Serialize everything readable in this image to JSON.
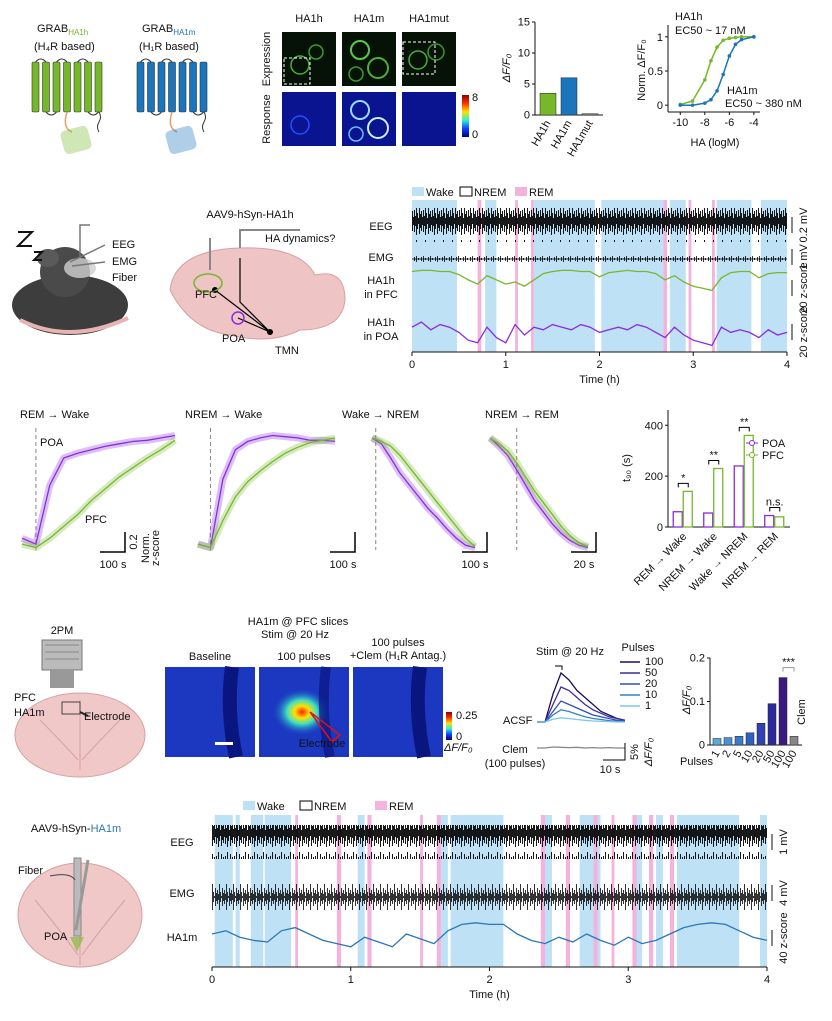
{
  "sensors": [
    {
      "name": "GRAB",
      "tag": "HA1h",
      "basis": "(H₄R based)",
      "color": "#76b82a"
    },
    {
      "name": "GRAB",
      "tag": "HA1m",
      "basis": "(H₁R based)",
      "color": "#1a75bc"
    }
  ],
  "imaging": {
    "columns": [
      {
        "label": "HA1h",
        "color": "#76b82a"
      },
      {
        "label": "HA1m",
        "color": "#1a75bc"
      },
      {
        "label": "HA1mut",
        "color": "#888888"
      }
    ],
    "rows": [
      "Expression",
      "Response"
    ],
    "colorbar": [
      8,
      0
    ]
  },
  "sleep_setup": {
    "vector": "AAV9-hSyn-HA1h",
    "labels": [
      "EEG",
      "EMG",
      "Fiber"
    ],
    "question": "HA dynamics?",
    "regions": [
      "PFC",
      "POA",
      "TMN"
    ]
  },
  "slice_setup": {
    "microscope": "2PM",
    "region": "PFC",
    "sensor": "HA1m",
    "electrode": "Electrode",
    "title": "HA1m @ PFC  slices",
    "stim": "Stim @ 20 Hz",
    "images": [
      [
        "Baseline"
      ],
      [
        "100 pulses"
      ],
      [
        "100 pulses",
        "+Clem (H₁R Antag.)"
      ]
    ],
    "image_electrode": "Electrode",
    "colorbar": [
      0.25,
      0
    ],
    "colorbar_label": "ΔF/F₀"
  },
  "poa_setup": {
    "vector": "AAV9-hSyn-",
    "sensor": "HA1m",
    "fiber": "Fiber",
    "region": "POA"
  },
  "chart_data": [
    {
      "type": "bar",
      "ylabel": "ΔF/F₀",
      "categories": [
        "HA1h",
        "HA1m",
        "HA1mut"
      ],
      "values": [
        3.5,
        6,
        0.2
      ],
      "colors": [
        "#76b82a",
        "#1a75bc",
        "#888888"
      ],
      "ylim": [
        0,
        15
      ],
      "yticks": [
        0,
        5,
        10,
        15
      ]
    },
    {
      "type": "line",
      "xlabel": "HA (logM)",
      "ylabel": "Norm. ΔF/F₀",
      "x": [
        -10,
        -9,
        -8,
        -7.5,
        -7,
        -6.5,
        -6,
        -5.5,
        -5,
        -4
      ],
      "series": [
        {
          "name": "HA1h",
          "color": "#76b82a",
          "annotation": "EC50 ~ 17 nM",
          "values": [
            0.01,
            0.06,
            0.37,
            0.65,
            0.85,
            0.95,
            0.98,
            0.99,
            1,
            1
          ]
        },
        {
          "name": "HA1m",
          "color": "#1a75bc",
          "annotation": "EC50 ~ 380 nM",
          "values": [
            0,
            0,
            0.03,
            0.08,
            0.21,
            0.45,
            0.72,
            0.89,
            0.96,
            1
          ]
        }
      ],
      "xlim": [
        -11,
        -3.5
      ],
      "ylim": [
        -0.1,
        1.1
      ],
      "xticks": [
        -10,
        -8,
        -6,
        -4
      ],
      "yticks": [
        0,
        0.5,
        1
      ]
    },
    {
      "type": "sleep",
      "legend": [
        "Wake",
        "NREM",
        "REM"
      ],
      "colors": {
        "wake": "#bfe1f6",
        "rem": "#f4b3dc"
      },
      "wake": [
        [
          0,
          0.48
        ],
        [
          0.78,
          0.9
        ],
        [
          1.3,
          1.95
        ],
        [
          2.02,
          2.68
        ],
        [
          2.75,
          2.92
        ],
        [
          3.25,
          3.62
        ],
        [
          3.72,
          4
        ]
      ],
      "rem": [
        [
          0.7,
          0.74
        ],
        [
          1.1,
          1.13
        ],
        [
          1.27,
          1.3
        ],
        [
          2.68,
          2.72
        ],
        [
          2.95,
          2.98
        ],
        [
          3.2,
          3.23
        ]
      ],
      "x": [
        0,
        0.1,
        0.2,
        0.3,
        0.4,
        0.5,
        0.6,
        0.7,
        0.8,
        0.9,
        1,
        1.1,
        1.2,
        1.3,
        1.4,
        1.5,
        1.6,
        1.7,
        1.8,
        1.9,
        2,
        2.1,
        2.2,
        2.3,
        2.4,
        2.5,
        2.6,
        2.7,
        2.8,
        2.9,
        3,
        3.1,
        3.2,
        3.3,
        3.4,
        3.5,
        3.6,
        3.7,
        3.8,
        3.9,
        4
      ],
      "rows": [
        {
          "label": [
            "EEG"
          ],
          "scale": "0.2 mV"
        },
        {
          "label": [
            "EMG"
          ],
          "scale": "1 mV"
        },
        {
          "label": [
            "HA1h",
            "in PFC"
          ],
          "scale": "20 z-score",
          "color": "#76b82a",
          "values": [
            30,
            31,
            31,
            30,
            30,
            27,
            22,
            18,
            26,
            22,
            18,
            20,
            16,
            22,
            28,
            30,
            31,
            31,
            30,
            30,
            25,
            29,
            30,
            31,
            30,
            30,
            28,
            22,
            26,
            20,
            16,
            14,
            12,
            24,
            29,
            30,
            30,
            24,
            28,
            29,
            29
          ]
        },
        {
          "label": [
            "HA1h",
            "in POA"
          ],
          "scale": "20 z-score",
          "color": "#8a2be2",
          "values": [
            8,
            10,
            7,
            9,
            8,
            6,
            3,
            2,
            8,
            4,
            2,
            9,
            5,
            8,
            7,
            9,
            8,
            7,
            9,
            8,
            6,
            7,
            8,
            7,
            9,
            8,
            6,
            4,
            8,
            5,
            3,
            2,
            1,
            8,
            6,
            7,
            6,
            4,
            7,
            5,
            6
          ]
        }
      ],
      "xlim": [
        0,
        4
      ],
      "xticks": [
        0,
        1,
        2,
        3,
        4
      ],
      "xlabel": "Time (h)"
    },
    {
      "type": "transition",
      "title": "REM → Wake",
      "scale_x": "100 s",
      "scale_y": 0.2,
      "scale_y_label": [
        "Norm.",
        "z-score"
      ],
      "series": [
        {
          "name": "POA",
          "color": "#8a2be2",
          "values": [
            0.1,
            0.05,
            0.55,
            0.78,
            0.82,
            0.85,
            0.88,
            0.9,
            0.92,
            0.93,
            0.95,
            0.97
          ]
        },
        {
          "name": "PFC",
          "color": "#76b82a",
          "values": [
            0.05,
            0.02,
            0.1,
            0.2,
            0.3,
            0.42,
            0.52,
            0.62,
            0.7,
            0.78,
            0.85,
            0.93
          ]
        }
      ]
    },
    {
      "type": "transition",
      "title": "NREM → Wake",
      "scale_x": "100 s",
      "series": [
        {
          "color": "#8a2be2",
          "values": [
            0.05,
            0.02,
            0.6,
            0.85,
            0.92,
            0.95,
            0.97,
            0.96,
            0.95,
            0.93,
            0.93,
            0.92
          ]
        },
        {
          "color": "#76b82a",
          "values": [
            0.05,
            0.02,
            0.25,
            0.45,
            0.58,
            0.67,
            0.75,
            0.82,
            0.87,
            0.91,
            0.93,
            0.95
          ]
        }
      ]
    },
    {
      "type": "transition",
      "title": "Wake → NREM",
      "scale_x": "100 s",
      "series": [
        {
          "color": "#8a2be2",
          "values": [
            0.95,
            0.9,
            0.78,
            0.65,
            0.55,
            0.45,
            0.35,
            0.27,
            0.18,
            0.1,
            0.04,
            0.02
          ]
        },
        {
          "color": "#76b82a",
          "values": [
            0.95,
            0.92,
            0.88,
            0.8,
            0.7,
            0.6,
            0.5,
            0.4,
            0.3,
            0.2,
            0.1,
            0.03
          ]
        }
      ]
    },
    {
      "type": "transition",
      "title": "NREM → REM",
      "scale_x": "20 s",
      "series": [
        {
          "color": "#8a2be2",
          "values": [
            0.95,
            0.88,
            0.8,
            0.68,
            0.55,
            0.42,
            0.32,
            0.22,
            0.14,
            0.08,
            0.04,
            0.02
          ]
        },
        {
          "color": "#76b82a",
          "values": [
            0.95,
            0.9,
            0.84,
            0.74,
            0.62,
            0.5,
            0.4,
            0.3,
            0.2,
            0.12,
            0.06,
            0.03
          ]
        }
      ]
    },
    {
      "type": "grouped_bar",
      "ylabel": "t₉₀ (s)",
      "categories": [
        "REM → Wake",
        "NREM → Wake",
        "Wake → NREM",
        "NREM → REM"
      ],
      "series": [
        {
          "name": "POA",
          "color": "#8a2be2",
          "values": [
            60,
            55,
            240,
            45
          ]
        },
        {
          "name": "PFC",
          "color": "#76b82a",
          "values": [
            140,
            230,
            360,
            40
          ]
        }
      ],
      "significance": [
        "*",
        "**",
        "**",
        "n.s."
      ],
      "ylim": [
        0,
        460
      ],
      "yticks": [
        0,
        200,
        400
      ]
    },
    {
      "type": "trace_family",
      "title": "Stim @ 20 Hz",
      "legend_title": "Pulses",
      "series": [
        {
          "name": "100",
          "color": "#1b0f5e",
          "values": [
            0,
            0,
            8,
            14,
            12,
            9,
            7,
            5,
            3,
            2,
            1,
            0.5
          ]
        },
        {
          "name": "50",
          "color": "#3d2d9c",
          "values": [
            0,
            0,
            5,
            10,
            9,
            7,
            5,
            3.5,
            2.5,
            1.5,
            1,
            0.5
          ]
        },
        {
          "name": "20",
          "color": "#2f4fb8",
          "values": [
            0,
            0,
            3,
            6,
            5,
            4,
            3,
            2,
            1.5,
            1,
            0.5,
            0.3
          ]
        },
        {
          "name": "10",
          "color": "#2f82c8",
          "values": [
            0,
            0,
            2,
            3.5,
            3,
            2.2,
            1.5,
            1,
            0.7,
            0.4,
            0.2,
            0.1
          ]
        },
        {
          "name": "1",
          "color": "#7ec8e8",
          "values": [
            0,
            0,
            0.8,
            1.2,
            1,
            0.7,
            0.5,
            0.3,
            0.2,
            0.1,
            0,
            0
          ]
        }
      ],
      "acsf": "ACSF",
      "clem": {
        "label": [
          "Clem",
          "(100 pulses)"
        ],
        "color": "#888888",
        "values": [
          0,
          0,
          0.3,
          0.2,
          0.1,
          0.2,
          0,
          0.1,
          0,
          0.1,
          0,
          0
        ]
      },
      "scale_x": "10 s",
      "scale_y": "5%",
      "ylabel": "ΔF/F₀"
    },
    {
      "type": "bar",
      "ylabel": "ΔF/F₀",
      "xlabel": "Pulses",
      "categories": [
        "1",
        "2",
        "5",
        "10",
        "20",
        "50",
        "100",
        "100"
      ],
      "values": [
        0.015,
        0.017,
        0.02,
        0.028,
        0.05,
        0.095,
        0.155,
        0.02
      ],
      "colors": [
        "#5aa9dd",
        "#4a92d4",
        "#3a7ccc",
        "#3060c0",
        "#3340b0",
        "#2a2a9a",
        "#3a1a80",
        "#888888"
      ],
      "annotation": "Clem",
      "significance": "***",
      "ylim": [
        0,
        0.2
      ],
      "yticks": [
        0,
        0.1,
        0.2
      ]
    },
    {
      "type": "sleep",
      "legend": [
        "Wake",
        "NREM",
        "REM"
      ],
      "colors": {
        "wake": "#bfe1f6",
        "rem": "#f4b3dc"
      },
      "wake": [
        [
          0.02,
          0.15
        ],
        [
          0.17,
          0.2
        ],
        [
          0.28,
          0.37
        ],
        [
          0.38,
          0.57
        ],
        [
          1.05,
          1.1
        ],
        [
          1.65,
          1.7
        ],
        [
          1.72,
          2.1
        ],
        [
          2.4,
          2.45
        ],
        [
          2.65,
          2.8
        ],
        [
          3.05,
          3.1
        ],
        [
          3.2,
          3.25
        ],
        [
          3.35,
          3.8
        ],
        [
          3.95,
          4
        ]
      ],
      "rem": [
        [
          0.6,
          0.62
        ],
        [
          0.9,
          0.93
        ],
        [
          1.12,
          1.15
        ],
        [
          1.5,
          1.52
        ],
        [
          1.62,
          1.65
        ],
        [
          2.37,
          2.4
        ],
        [
          2.55,
          2.58
        ],
        [
          2.75,
          2.78
        ],
        [
          2.88,
          2.9
        ],
        [
          3.03,
          3.06
        ],
        [
          3.15,
          3.18
        ],
        [
          3.3,
          3.33
        ]
      ],
      "x": [
        0,
        0.1,
        0.2,
        0.3,
        0.4,
        0.5,
        0.6,
        0.7,
        0.8,
        0.9,
        1,
        1.1,
        1.2,
        1.3,
        1.4,
        1.5,
        1.6,
        1.7,
        1.8,
        1.9,
        2,
        2.1,
        2.2,
        2.3,
        2.4,
        2.5,
        2.6,
        2.7,
        2.8,
        2.9,
        3,
        3.1,
        3.2,
        3.3,
        3.4,
        3.5,
        3.6,
        3.7,
        3.8,
        3.9,
        4
      ],
      "rows": [
        {
          "label": [
            "EEG"
          ],
          "scale": "1 mV"
        },
        {
          "label": [
            "EMG"
          ],
          "scale": "4 mV"
        },
        {
          "label": [
            "HA1m"
          ],
          "scale": "40 z-score",
          "color": "#2a78b8",
          "values": [
            20,
            22,
            18,
            16,
            15,
            22,
            24,
            20,
            16,
            14,
            12,
            18,
            15,
            12,
            20,
            17,
            14,
            22,
            26,
            27,
            26,
            26,
            20,
            16,
            14,
            18,
            15,
            20,
            16,
            13,
            18,
            14,
            16,
            20,
            24,
            26,
            27,
            26,
            22,
            18,
            16
          ]
        }
      ],
      "xlim": [
        0,
        4
      ],
      "xticks": [
        0,
        1,
        2,
        3,
        4
      ],
      "xlabel": "Time (h)"
    }
  ]
}
